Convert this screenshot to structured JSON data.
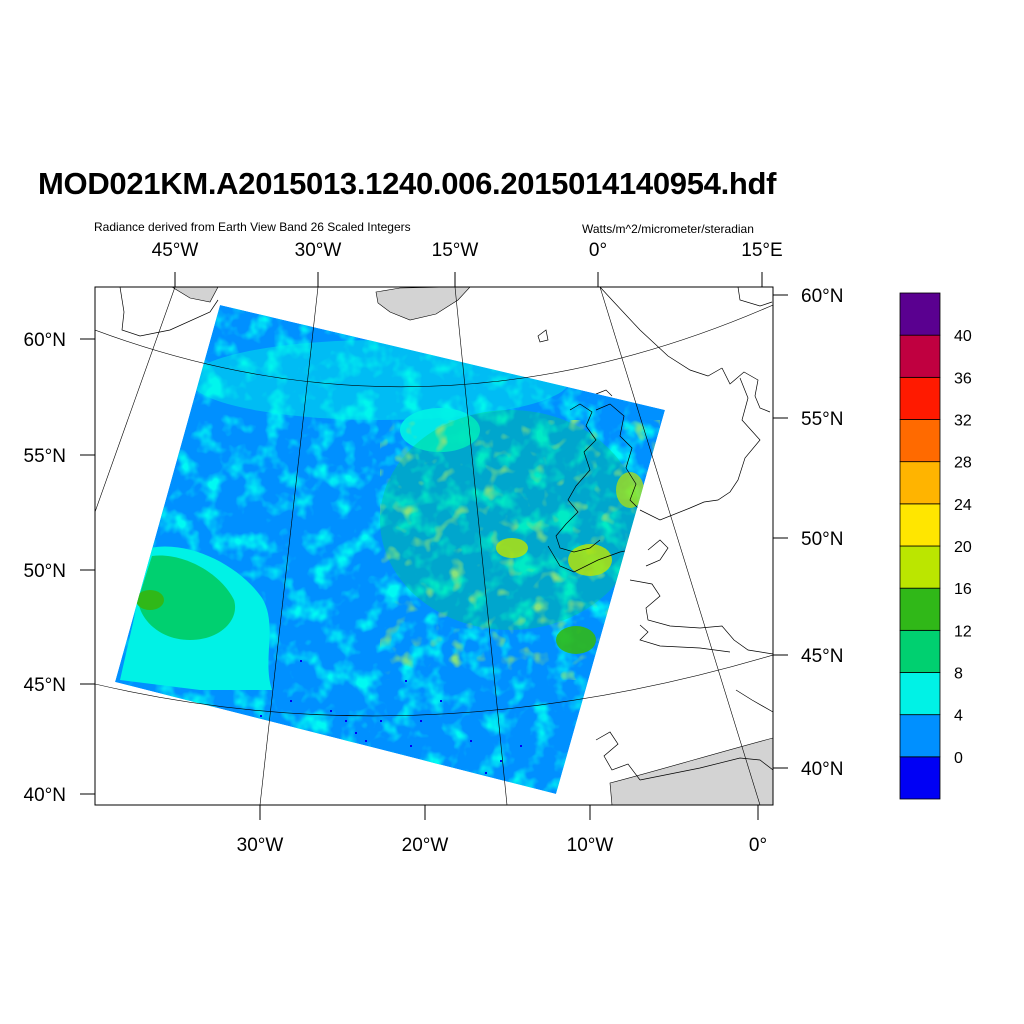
{
  "title": "MOD021KM.A2015013.1240.006.2015014140954.hdf",
  "left_string": "Radiance derived from Earth View Band 26 Scaled Integers",
  "right_string": "Watts/m^2/micrometer/steradian",
  "axes": {
    "top": [
      "45°W",
      "30°W",
      "15°W",
      "0°",
      "15°E"
    ],
    "bottom": [
      "30°W",
      "20°W",
      "10°W",
      "0°"
    ],
    "left": [
      "60°N",
      "55°N",
      "50°N",
      "45°N",
      "40°N"
    ],
    "right": [
      "60°N",
      "55°N",
      "50°N",
      "45°N",
      "40°N"
    ]
  },
  "colorbar": {
    "colors": [
      "#0000f5",
      "#0090ff",
      "#00f2e6",
      "#00d070",
      "#30b818",
      "#bbe600",
      "#ffe600",
      "#ffb400",
      "#ff6a00",
      "#ff1a00",
      "#c00040",
      "#5a0090"
    ],
    "labels": [
      "0",
      "4",
      "8",
      "12",
      "16",
      "20",
      "24",
      "28",
      "32",
      "36",
      "40"
    ]
  }
}
